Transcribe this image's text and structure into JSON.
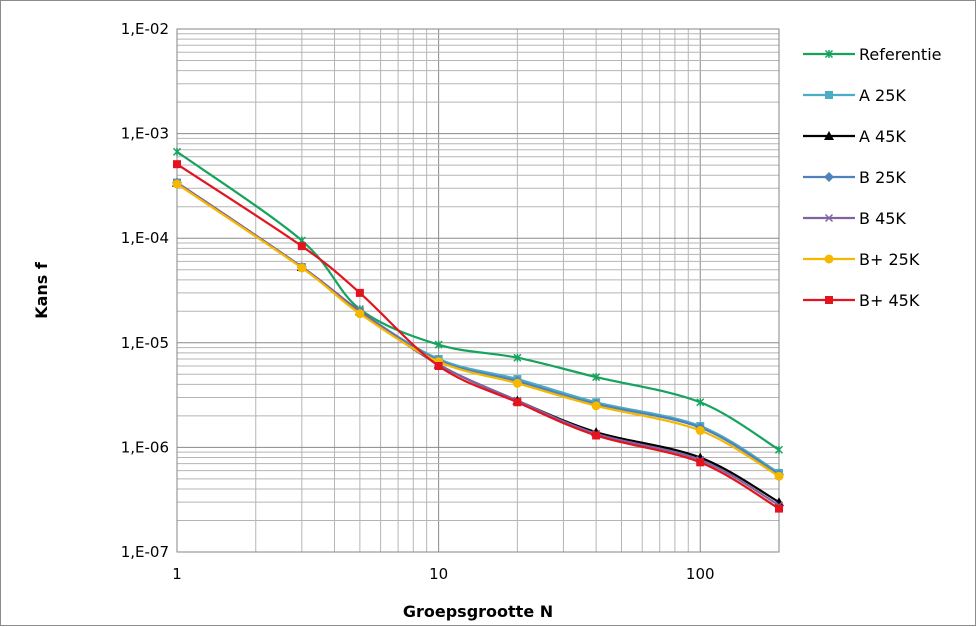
{
  "chart_data": {
    "type": "line",
    "title": "",
    "xlabel": "Groepsgrootte N",
    "ylabel": "Kans f",
    "x_scale": "log",
    "y_scale": "log",
    "xlim": [
      1,
      200
    ],
    "ylim": [
      1e-07,
      0.01
    ],
    "x_tick_labels": [
      "1",
      "10",
      "100"
    ],
    "y_tick_labels": [
      "1,E-07",
      "1,E-06",
      "1,E-05",
      "1,E-04",
      "1,E-03",
      "1,E-02"
    ],
    "grid": true,
    "legend_position": "right",
    "x": [
      1,
      3,
      5,
      10,
      20,
      40,
      100,
      200
    ],
    "series": [
      {
        "name": "Referentie",
        "color": "#17a35e",
        "marker": "star",
        "values": [
          0.00067,
          9.5e-05,
          2.1e-05,
          9.6e-06,
          7.2e-06,
          4.7e-06,
          2.7e-06,
          9.5e-07
        ]
      },
      {
        "name": "A 25K",
        "color": "#4bacc6",
        "marker": "square",
        "values": [
          0.00034,
          5.3e-05,
          2e-05,
          7e-06,
          4.5e-06,
          2.7e-06,
          1.6e-06,
          5.7e-07
        ]
      },
      {
        "name": "A 45K",
        "color": "#000000",
        "marker": "triangle",
        "values": [
          0.00034,
          5.3e-05,
          2e-05,
          6.2e-06,
          2.8e-06,
          1.4e-06,
          8e-07,
          3e-07
        ]
      },
      {
        "name": "B 25K",
        "color": "#4f81bd",
        "marker": "diamond",
        "values": [
          0.00034,
          5.3e-05,
          2e-05,
          6.8e-06,
          4.3e-06,
          2.6e-06,
          1.55e-06,
          5.5e-07
        ]
      },
      {
        "name": "B 45K",
        "color": "#8064a2",
        "marker": "x",
        "values": [
          0.00034,
          5.3e-05,
          2e-05,
          6.2e-06,
          2.8e-06,
          1.35e-06,
          7.6e-07,
          2.8e-07
        ]
      },
      {
        "name": "B+ 25K",
        "color": "#f5b800",
        "marker": "circle",
        "values": [
          0.00033,
          5.2e-05,
          1.9e-05,
          6.6e-06,
          4.1e-06,
          2.5e-06,
          1.45e-06,
          5.3e-07
        ]
      },
      {
        "name": "B+ 45K",
        "color": "#e3141f",
        "marker": "square",
        "values": [
          0.00051,
          8.4e-05,
          3e-05,
          6e-06,
          2.7e-06,
          1.3e-06,
          7.2e-07,
          2.6e-07
        ]
      }
    ]
  }
}
